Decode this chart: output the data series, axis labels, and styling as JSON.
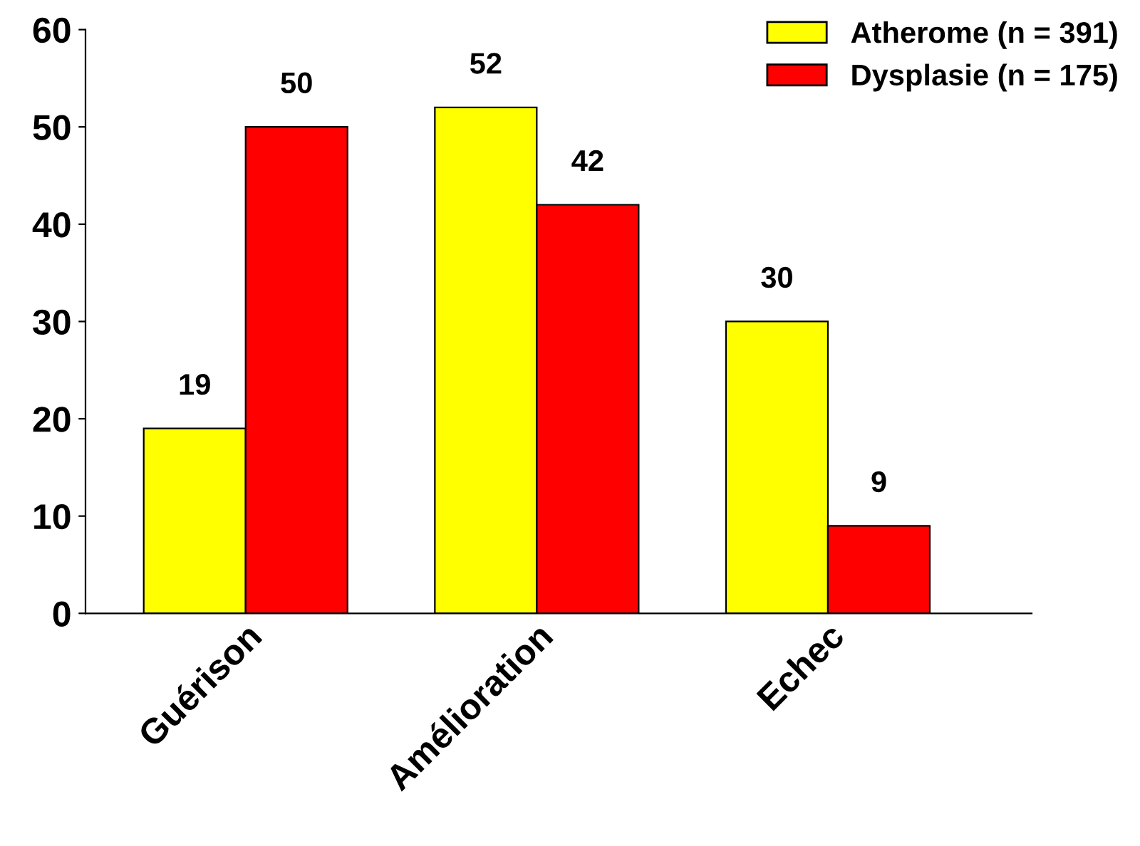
{
  "chart_data": {
    "type": "bar",
    "categories": [
      "Guérison",
      "Amélioration",
      "Echec"
    ],
    "series": [
      {
        "name": "Atherome (n = 391)",
        "color": "#ffff00",
        "values": [
          19,
          52,
          30
        ]
      },
      {
        "name": "Dysplasie (n = 175)",
        "color": "#ff0000",
        "values": [
          50,
          42,
          9
        ]
      }
    ],
    "ylim": [
      0,
      60
    ],
    "yticks": [
      0,
      10,
      20,
      30,
      40,
      50,
      60
    ],
    "grid": false,
    "legend": "top right",
    "data_labels": true
  }
}
